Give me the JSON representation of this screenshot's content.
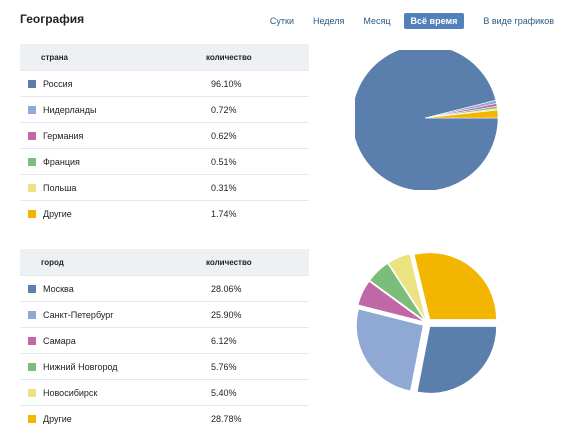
{
  "header": {
    "title": "География"
  },
  "period_tabs": [
    {
      "label": "Сутки",
      "active": false
    },
    {
      "label": "Неделя",
      "active": false
    },
    {
      "label": "Месяц",
      "active": false
    },
    {
      "label": "Всё время",
      "active": true
    },
    {
      "label": "В виде графиков",
      "active": false
    }
  ],
  "country_table": {
    "header_name": "страна",
    "header_value": "количество",
    "rows": [
      {
        "name": "Россия",
        "value": "96.10%",
        "color": "#5b7fad"
      },
      {
        "name": "Нидерланды",
        "value": "0.72%",
        "color": "#8fa8d4"
      },
      {
        "name": "Германия",
        "value": "0.62%",
        "color": "#c067a8"
      },
      {
        "name": "Франция",
        "value": "0.51%",
        "color": "#7cbd7b"
      },
      {
        "name": "Польша",
        "value": "0.31%",
        "color": "#ebe280"
      },
      {
        "name": "Другие",
        "value": "1.74%",
        "color": "#f2b500"
      }
    ]
  },
  "city_table": {
    "header_name": "город",
    "header_value": "количество",
    "rows": [
      {
        "name": "Москва",
        "value": "28.06%",
        "color": "#5b7fad"
      },
      {
        "name": "Санкт-Петербург",
        "value": "25.90%",
        "color": "#8fa8d4"
      },
      {
        "name": "Самара",
        "value": "6.12%",
        "color": "#c067a8"
      },
      {
        "name": "Нижний Новгород",
        "value": "5.76%",
        "color": "#7cbd7b"
      },
      {
        "name": "Новосибирск",
        "value": "5.40%",
        "color": "#ebe280"
      },
      {
        "name": "Другие",
        "value": "28.78%",
        "color": "#f2b500"
      }
    ]
  },
  "chart_data": [
    {
      "type": "pie",
      "categories": [
        "Россия",
        "Нидерланды",
        "Германия",
        "Франция",
        "Польша",
        "Другие"
      ],
      "values": [
        96.1,
        0.72,
        0.62,
        0.51,
        0.31,
        1.74
      ],
      "colors": [
        "#5b7fad",
        "#8fa8d4",
        "#c067a8",
        "#7cbd7b",
        "#ebe280",
        "#f2b500"
      ],
      "exploded": false
    },
    {
      "type": "pie",
      "categories": [
        "Москва",
        "Санкт-Петербург",
        "Самара",
        "Нижний Новгород",
        "Новосибирск",
        "Другие"
      ],
      "values": [
        28.06,
        25.9,
        6.12,
        5.76,
        5.4,
        28.78
      ],
      "colors": [
        "#5b7fad",
        "#8fa8d4",
        "#c067a8",
        "#7cbd7b",
        "#ebe280",
        "#f2b500"
      ],
      "exploded": true
    }
  ]
}
